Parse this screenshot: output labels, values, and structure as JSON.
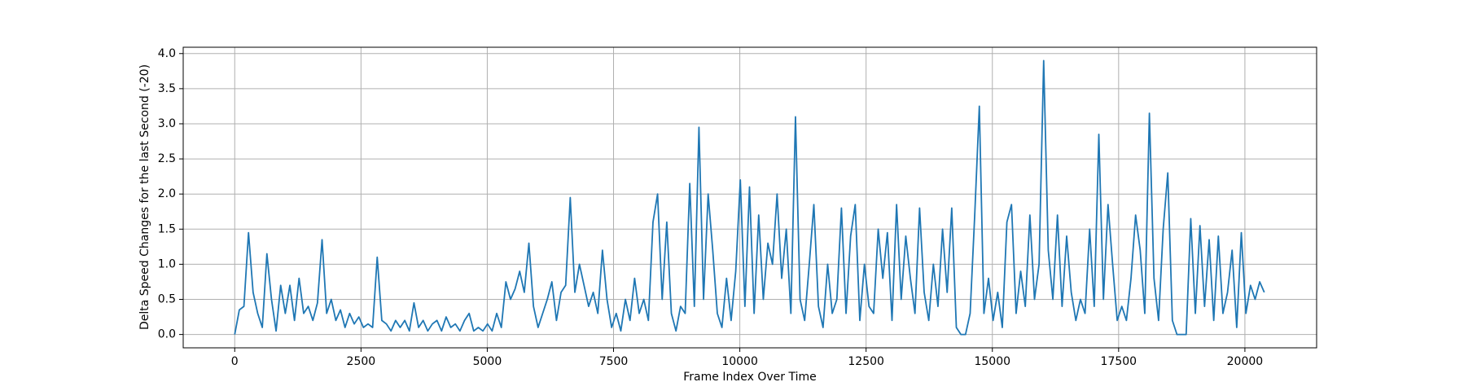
{
  "chart_data": {
    "type": "line",
    "x_label": "Frame Index Over Time",
    "y_label": "Delta Speed Changes for the last Second (-20)",
    "xlim": [
      -1020,
      21420
    ],
    "ylim": [
      -0.19,
      4.09
    ],
    "xticks": [
      0,
      2500,
      5000,
      7500,
      10000,
      12500,
      15000,
      17500,
      20000
    ],
    "yticks": [
      {
        "value": 0,
        "label": "0.0"
      },
      0.5,
      {
        "value": 1,
        "label": "1.0"
      },
      1.5,
      {
        "value": 2,
        "label": "2.0"
      },
      2.5,
      {
        "value": 3,
        "label": "3.0"
      },
      3.5,
      {
        "value": 4,
        "label": "4.0"
      }
    ],
    "grid": true,
    "x": [
      0,
      91,
      182,
      273,
      364,
      455,
      546,
      637,
      728,
      819,
      910,
      1001,
      1092,
      1183,
      1274,
      1365,
      1456,
      1547,
      1638,
      1729,
      1820,
      1911,
      2002,
      2093,
      2184,
      2275,
      2366,
      2457,
      2548,
      2639,
      2730,
      2821,
      2912,
      3003,
      3094,
      3185,
      3276,
      3367,
      3458,
      3549,
      3640,
      3731,
      3822,
      3913,
      4004,
      4095,
      4186,
      4277,
      4368,
      4459,
      4550,
      4641,
      4732,
      4823,
      4914,
      5005,
      5096,
      5187,
      5278,
      5369,
      5460,
      5551,
      5642,
      5733,
      5824,
      5915,
      6006,
      6097,
      6188,
      6279,
      6370,
      6461,
      6552,
      6643,
      6734,
      6825,
      6916,
      7007,
      7098,
      7189,
      7280,
      7371,
      7462,
      7553,
      7644,
      7735,
      7826,
      7917,
      8008,
      8099,
      8190,
      8281,
      8372,
      8463,
      8554,
      8645,
      8736,
      8827,
      8918,
      9009,
      9100,
      9191,
      9282,
      9373,
      9464,
      9555,
      9646,
      9737,
      9828,
      9919,
      10010,
      10101,
      10192,
      10283,
      10374,
      10465,
      10556,
      10647,
      10738,
      10829,
      10920,
      11011,
      11102,
      11193,
      11284,
      11375,
      11466,
      11557,
      11648,
      11739,
      11830,
      11921,
      12012,
      12103,
      12194,
      12285,
      12376,
      12467,
      12558,
      12649,
      12740,
      12831,
      12922,
      13013,
      13104,
      13195,
      13286,
      13377,
      13468,
      13559,
      13650,
      13741,
      13832,
      13923,
      14014,
      14105,
      14196,
      14287,
      14378,
      14469,
      14560,
      14651,
      14742,
      14833,
      14924,
      15015,
      15106,
      15197,
      15288,
      15379,
      15470,
      15561,
      15652,
      15743,
      15834,
      15925,
      16016,
      16107,
      16198,
      16289,
      16380,
      16471,
      16562,
      16653,
      16744,
      16835,
      16926,
      17017,
      17108,
      17199,
      17290,
      17381,
      17472,
      17563,
      17654,
      17745,
      17836,
      17927,
      18018,
      18109,
      18200,
      18291,
      18382,
      18473,
      18564,
      18655,
      18746,
      18837,
      18928,
      19019,
      19110,
      19201,
      19292,
      19383,
      19474,
      19565,
      19656,
      19747,
      19838,
      19929,
      20020,
      20111,
      20202,
      20293,
      20384
    ],
    "series": [
      {
        "color": "#1f77b4",
        "values": [
          0,
          0.35,
          0.4,
          1.45,
          0.6,
          0.3,
          0.1,
          1.15,
          0.5,
          0.05,
          0.7,
          0.3,
          0.7,
          0.2,
          0.8,
          0.3,
          0.4,
          0.2,
          0.45,
          1.35,
          0.3,
          0.5,
          0.2,
          0.35,
          0.1,
          0.3,
          0.15,
          0.25,
          0.1,
          0.15,
          0.1,
          1.1,
          0.2,
          0.15,
          0.05,
          0.2,
          0.1,
          0.2,
          0.05,
          0.45,
          0.1,
          0.2,
          0.05,
          0.15,
          0.2,
          0.05,
          0.25,
          0.1,
          0.15,
          0.05,
          0.2,
          0.3,
          0.05,
          0.1,
          0.05,
          0.15,
          0.05,
          0.3,
          0.1,
          0.75,
          0.5,
          0.65,
          0.9,
          0.6,
          1.3,
          0.4,
          0.1,
          0.3,
          0.5,
          0.75,
          0.2,
          0.6,
          0.7,
          1.95,
          0.6,
          1.0,
          0.7,
          0.4,
          0.6,
          0.3,
          1.2,
          0.5,
          0.1,
          0.3,
          0.05,
          0.5,
          0.2,
          0.8,
          0.3,
          0.5,
          0.2,
          1.6,
          2.0,
          0.5,
          1.6,
          0.3,
          0.05,
          0.4,
          0.3,
          2.15,
          0.4,
          2.95,
          0.5,
          2.0,
          1.2,
          0.3,
          0.1,
          0.8,
          0.2,
          0.9,
          2.2,
          0.4,
          2.1,
          0.3,
          1.7,
          0.5,
          1.3,
          1.0,
          2.0,
          0.8,
          1.5,
          0.3,
          3.1,
          0.5,
          0.2,
          1.0,
          1.85,
          0.4,
          0.1,
          1.0,
          0.3,
          0.5,
          1.8,
          0.3,
          1.4,
          1.85,
          0.2,
          1.0,
          0.4,
          0.3,
          1.5,
          0.8,
          1.45,
          0.2,
          1.85,
          0.5,
          1.4,
          0.8,
          0.3,
          1.8,
          0.6,
          0.2,
          1.0,
          0.4,
          1.5,
          0.6,
          1.8,
          0.1,
          0,
          0,
          0.3,
          1.7,
          3.25,
          0.3,
          0.8,
          0.2,
          0.6,
          0.1,
          1.6,
          1.85,
          0.3,
          0.9,
          0.4,
          1.7,
          0.5,
          1.0,
          3.9,
          1.2,
          0.5,
          1.7,
          0.4,
          1.4,
          0.6,
          0.2,
          0.5,
          0.3,
          1.5,
          0.4,
          2.85,
          0.5,
          1.85,
          1.0,
          0.2,
          0.4,
          0.2,
          0.8,
          1.7,
          1.2,
          0.3,
          3.15,
          0.8,
          0.2,
          1.5,
          2.3,
          0.2,
          0,
          0,
          0,
          1.65,
          0.3,
          1.55,
          0.4,
          1.35,
          0.2,
          1.4,
          0.3,
          0.6,
          1.2,
          0.1,
          1.45,
          0.3,
          0.7,
          0.5,
          0.75,
          0.6
        ]
      }
    ]
  }
}
